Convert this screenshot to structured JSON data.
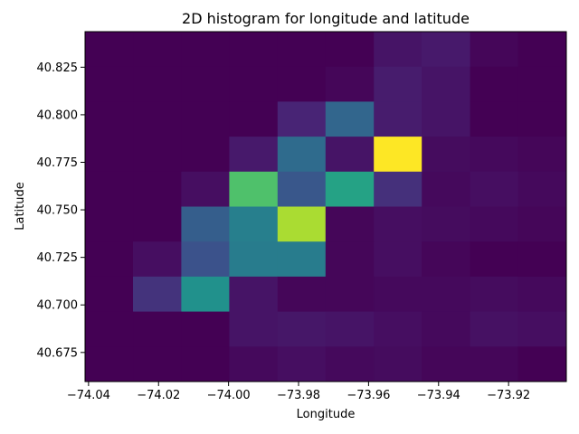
{
  "chart_data": {
    "type": "heatmap",
    "title": "2D histogram for longitude and latitude",
    "xlabel": "Longitude",
    "ylabel": "Latitude",
    "xlim": [
      -74.041,
      -73.9035
    ],
    "ylim": [
      40.6597,
      40.8437
    ],
    "x_ticks": [
      -74.04,
      -74.02,
      -74.0,
      -73.98,
      -73.96,
      -73.94,
      -73.92
    ],
    "x_tick_labels": [
      "−74.04",
      "−74.02",
      "−74.00",
      "−73.98",
      "−73.96",
      "−73.94",
      "−73.92"
    ],
    "y_ticks": [
      40.675,
      40.7,
      40.725,
      40.75,
      40.775,
      40.8,
      40.825
    ],
    "y_tick_labels": [
      "40.675",
      "40.700",
      "40.725",
      "40.750",
      "40.775",
      "40.800",
      "40.825"
    ],
    "x_bin_edges": [
      -74.041,
      -74.0273,
      -74.0135,
      -73.9998,
      -73.986,
      -73.9723,
      -73.9585,
      -73.9448,
      -73.931,
      -73.9173,
      -73.9035
    ],
    "y_bin_edges": [
      40.6597,
      40.6781,
      40.6965,
      40.7149,
      40.7333,
      40.7517,
      40.7701,
      40.7885,
      40.8069,
      40.8253,
      40.8437
    ],
    "colormap": "viridis",
    "value_scale": "relative density, 0 to 1",
    "rows_top_to_bottom": [
      [
        0.0,
        0.0,
        0.0,
        0.0,
        0.0,
        0.0,
        0.07,
        0.09,
        0.02,
        0.0
      ],
      [
        0.0,
        0.0,
        0.0,
        0.0,
        0.0,
        0.02,
        0.1,
        0.07,
        0.0,
        0.0
      ],
      [
        0.0,
        0.0,
        0.0,
        0.0,
        0.13,
        0.33,
        0.1,
        0.07,
        0.0,
        0.0
      ],
      [
        0.0,
        0.0,
        0.0,
        0.09,
        0.35,
        0.07,
        1.0,
        0.04,
        0.03,
        0.02
      ],
      [
        0.0,
        0.0,
        0.05,
        0.72,
        0.27,
        0.58,
        0.16,
        0.03,
        0.05,
        0.03
      ],
      [
        0.0,
        0.0,
        0.3,
        0.43,
        0.88,
        0.02,
        0.05,
        0.04,
        0.03,
        0.02
      ],
      [
        0.0,
        0.05,
        0.25,
        0.42,
        0.42,
        0.02,
        0.05,
        0.02,
        0.0,
        0.0
      ],
      [
        0.0,
        0.17,
        0.5,
        0.07,
        0.02,
        0.02,
        0.03,
        0.03,
        0.04,
        0.03
      ],
      [
        0.0,
        0.0,
        0.0,
        0.07,
        0.08,
        0.07,
        0.05,
        0.03,
        0.06,
        0.05
      ],
      [
        0.0,
        0.0,
        0.0,
        0.03,
        0.05,
        0.03,
        0.04,
        0.02,
        0.02,
        0.0
      ]
    ]
  }
}
